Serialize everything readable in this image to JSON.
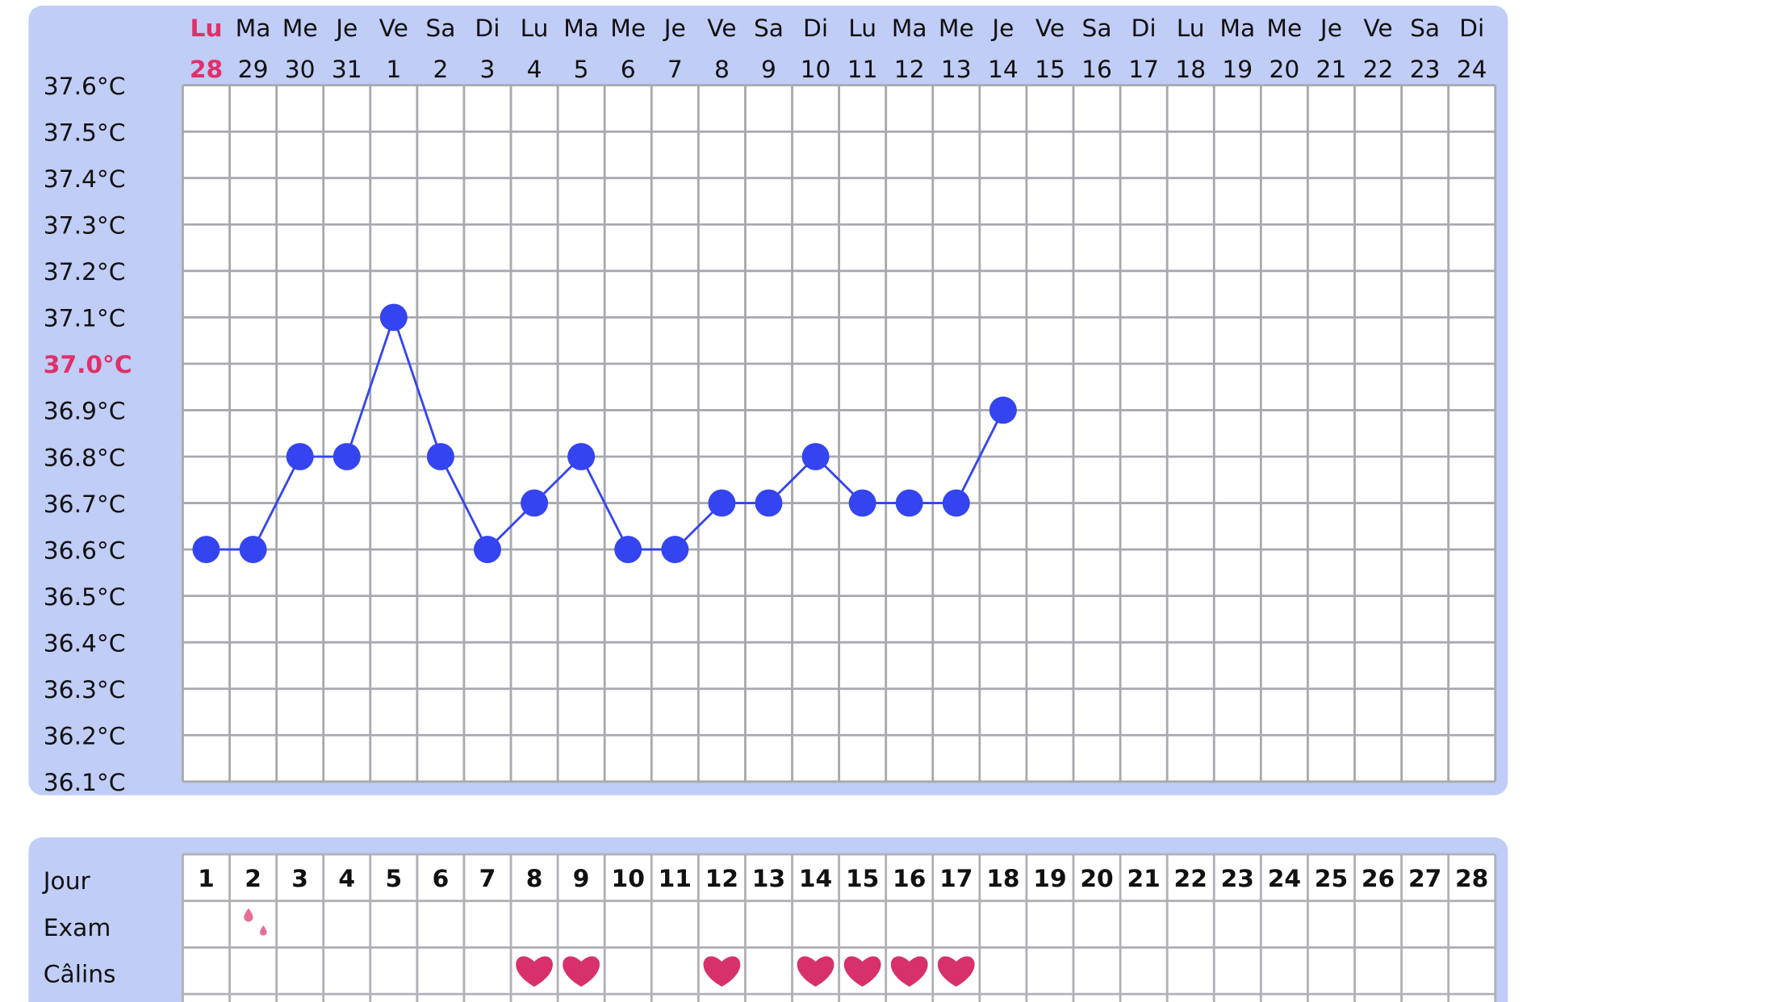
{
  "chart_data": {
    "type": "line",
    "weekdays": [
      "Lu",
      "Ma",
      "Me",
      "Je",
      "Ve",
      "Sa",
      "Di",
      "Lu",
      "Ma",
      "Me",
      "Je",
      "Ve",
      "Sa",
      "Di",
      "Lu",
      "Ma",
      "Me",
      "Je",
      "Ve",
      "Sa",
      "Di",
      "Lu",
      "Ma",
      "Me",
      "Je",
      "Ve",
      "Sa",
      "Di"
    ],
    "categories": [
      "28",
      "29",
      "30",
      "31",
      "1",
      "2",
      "3",
      "4",
      "5",
      "6",
      "7",
      "8",
      "9",
      "10",
      "11",
      "12",
      "13",
      "14",
      "15",
      "16",
      "17",
      "18",
      "19",
      "20",
      "21",
      "22",
      "23",
      "24"
    ],
    "series": [
      {
        "color": "#3444f0",
        "values": [
          36.6,
          36.6,
          36.8,
          36.8,
          37.1,
          36.8,
          36.6,
          36.7,
          36.8,
          36.6,
          36.6,
          36.7,
          36.7,
          36.8,
          36.7,
          36.7,
          36.7,
          36.9,
          null,
          null,
          null,
          null,
          null,
          null,
          null,
          null,
          null,
          null
        ]
      }
    ],
    "ylim": [
      36.1,
      37.6
    ],
    "yticks": [
      {
        "value": 37.6,
        "label": "37.6°C"
      },
      {
        "value": 37.5,
        "label": "37.5°C"
      },
      {
        "value": 37.4,
        "label": "37.4°C"
      },
      {
        "value": 37.3,
        "label": "37.3°C"
      },
      {
        "value": 37.2,
        "label": "37.2°C"
      },
      {
        "value": 37.1,
        "label": "37.1°C"
      },
      {
        "value": 37.0,
        "label": "37.0°C"
      },
      {
        "value": 36.9,
        "label": "36.9°C"
      },
      {
        "value": 36.8,
        "label": "36.8°C"
      },
      {
        "value": 36.7,
        "label": "36.7°C"
      },
      {
        "value": 36.6,
        "label": "36.6°C"
      },
      {
        "value": 36.5,
        "label": "36.5°C"
      },
      {
        "value": 36.4,
        "label": "36.4°C"
      },
      {
        "value": 36.3,
        "label": "36.3°C"
      },
      {
        "value": 36.2,
        "label": "36.2°C"
      },
      {
        "value": 36.1,
        "label": "36.1°C"
      }
    ],
    "grid": true
  },
  "cycle_table": {
    "row_labels": [
      "Jour",
      "Exam",
      "Câlins"
    ],
    "days": [
      "1",
      "2",
      "3",
      "4",
      "5",
      "6",
      "7",
      "8",
      "9",
      "10",
      "11",
      "12",
      "13",
      "14",
      "15",
      "16",
      "17",
      "18",
      "19",
      "20",
      "21",
      "22",
      "23",
      "24",
      "25",
      "26",
      "27",
      "28"
    ],
    "exam_days": [
      2
    ],
    "calins_days": [
      8,
      9,
      12,
      14,
      15,
      16,
      17
    ]
  }
}
